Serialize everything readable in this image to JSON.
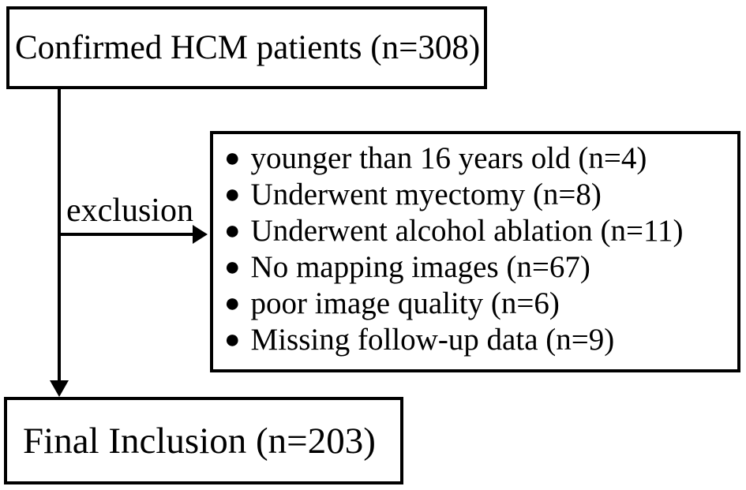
{
  "diagram": {
    "type": "flowchart",
    "background_color": "#ffffff",
    "line_color": "#000000",
    "top_box": {
      "label": "Confirmed HCM patients (n=308)"
    },
    "exclusion_arrow_label": "exclusion",
    "exclusion_box": {
      "bullet": "●",
      "items": [
        "younger than 16 years old (n=4)",
        "Underwent myectomy (n=8)",
        "Underwent alcohol ablation (n=11)",
        "No mapping images (n=67)",
        "poor image quality (n=6)",
        "Missing follow-up data (n=9)"
      ]
    },
    "bottom_box": {
      "label": "Final Inclusion (n=203)"
    }
  }
}
